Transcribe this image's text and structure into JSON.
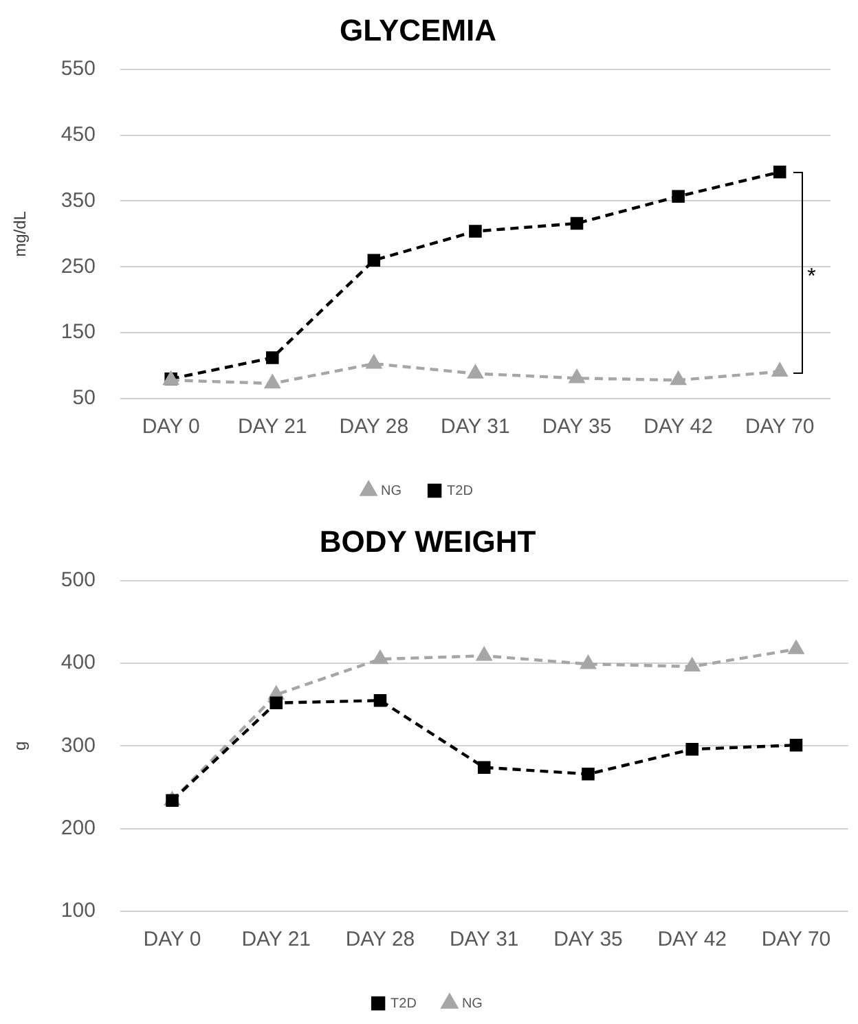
{
  "chart_data": [
    {
      "type": "line",
      "title": "GLYCEMIA",
      "ylabel": "mg/dL",
      "categories": [
        "DAY 0",
        "DAY 21",
        "DAY 28",
        "DAY 31",
        "DAY 35",
        "DAY 42",
        "DAY 70"
      ],
      "series": [
        {
          "name": "NG",
          "color": "#a6a6a6",
          "marker": "triangle",
          "values": [
            78,
            73,
            103,
            88,
            81,
            78,
            91
          ]
        },
        {
          "name": "T2D",
          "color": "#000000",
          "marker": "square",
          "values": [
            80,
            112,
            260,
            304,
            316,
            357,
            394
          ]
        }
      ],
      "ylim": [
        50,
        550
      ],
      "yticks": [
        50,
        150,
        250,
        350,
        450,
        550
      ],
      "grid": "y",
      "legend": "bottom",
      "line_style": "dashed",
      "annotations": [
        "*"
      ]
    },
    {
      "type": "line",
      "title": "BODY WEIGHT",
      "ylabel": "g",
      "categories": [
        "DAY 0",
        "DAY 21",
        "DAY 28",
        "DAY 31",
        "DAY 35",
        "DAY 42",
        "DAY 70"
      ],
      "series": [
        {
          "name": "T2D",
          "color": "#000000",
          "marker": "square",
          "values": [
            234,
            352,
            355,
            274,
            266,
            296,
            301
          ]
        },
        {
          "name": "NG",
          "color": "#a6a6a6",
          "marker": "triangle",
          "values": [
            234,
            362,
            405,
            409,
            399,
            396,
            417
          ]
        }
      ],
      "ylim": [
        100,
        500
      ],
      "yticks": [
        100,
        200,
        300,
        400,
        500
      ],
      "grid": "y",
      "legend": "bottom",
      "line_style": "dashed"
    }
  ]
}
